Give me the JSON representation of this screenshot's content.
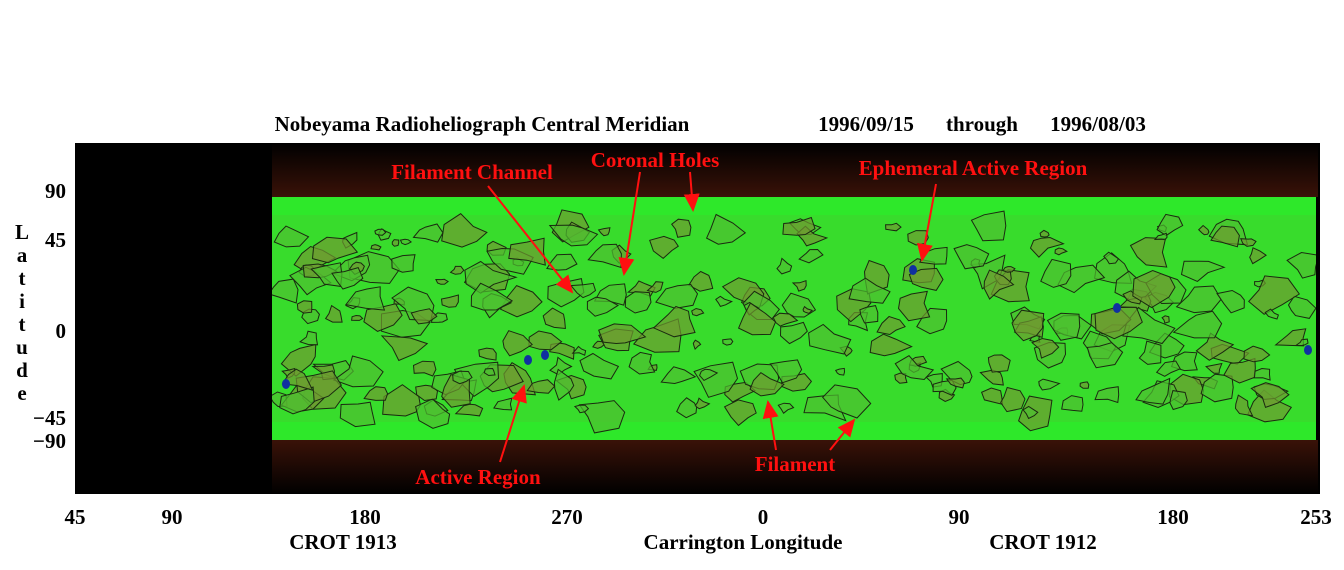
{
  "header": {
    "title": "Nobeyama Radioheliograph Central Meridian",
    "start_date": "1996/09/15",
    "through": "through",
    "end_date": "1996/08/03"
  },
  "y_axis": {
    "label": "Latitude",
    "ticks": [
      "90",
      "45",
      "0",
      "−45",
      "−90"
    ]
  },
  "x_axis": {
    "label": "Carrington Longitude",
    "ticks": [
      "45",
      "90",
      "180",
      "270",
      "0",
      "90",
      "180",
      "253"
    ],
    "rotations": [
      "CROT 1913",
      "CROT 1912"
    ]
  },
  "annotations": [
    "Filament Channel",
    "Coronal Holes",
    "Ephemeral Active Region",
    "Active Region",
    "Filament"
  ]
}
